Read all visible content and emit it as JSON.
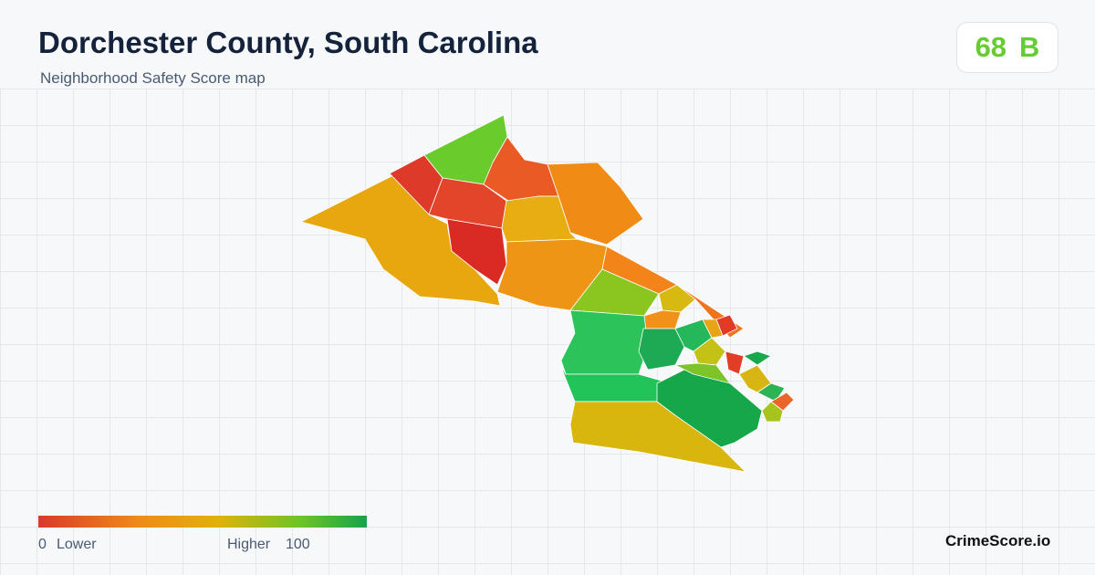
{
  "header": {
    "title": "Dorchester County, South Carolina",
    "subtitle": "Neighborhood Safety Score map"
  },
  "score": {
    "value": 68,
    "grade": "B"
  },
  "legend": {
    "min": 0,
    "low_label": "Lower",
    "high_label": "Higher",
    "max": 100
  },
  "footer": {
    "brand": "CrimeScore.io"
  }
}
